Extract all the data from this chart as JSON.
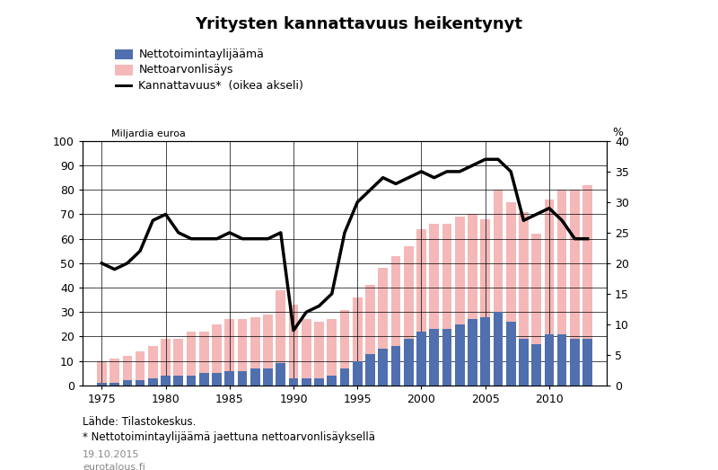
{
  "title": "Yritysten kannattavuus heikentynyt",
  "ylabel_left": "Miljardia euroa",
  "ylabel_right": "%",
  "footnote1": "Lähde: Tilastokeskus.",
  "footnote2": "* Nettotoimintaylijäämä jaettuna nettoarvonlisäyksellä",
  "footnote3": "19.10.2015\neurotalous.fi",
  "legend_blue": "Nettotoimintaylijäämä",
  "legend_pink": "Nettoarvonlisäys",
  "legend_line": "Kannattavuus*  (oikea akseli)",
  "years": [
    1975,
    1976,
    1977,
    1978,
    1979,
    1980,
    1981,
    1982,
    1983,
    1984,
    1985,
    1986,
    1987,
    1988,
    1989,
    1990,
    1991,
    1992,
    1993,
    1994,
    1995,
    1996,
    1997,
    1998,
    1999,
    2000,
    2001,
    2002,
    2003,
    2004,
    2005,
    2006,
    2007,
    2008,
    2009,
    2010,
    2011,
    2012,
    2013
  ],
  "nettoarvo": [
    10,
    11,
    12,
    14,
    16,
    19,
    19,
    22,
    22,
    25,
    27,
    27,
    28,
    29,
    39,
    33,
    27,
    26,
    27,
    31,
    36,
    41,
    48,
    53,
    57,
    64,
    66,
    66,
    69,
    70,
    68,
    80,
    75,
    71,
    62,
    76,
    80,
    80,
    82
  ],
  "nettotoiminta": [
    1,
    1,
    2,
    2,
    3,
    4,
    4,
    4,
    5,
    5,
    6,
    6,
    7,
    7,
    9,
    3,
    3,
    3,
    4,
    7,
    10,
    13,
    15,
    16,
    19,
    22,
    23,
    23,
    25,
    27,
    28,
    30,
    26,
    19,
    17,
    21,
    21,
    19,
    19
  ],
  "kannattavuus": [
    20,
    19,
    20,
    22,
    27,
    28,
    25,
    24,
    24,
    24,
    25,
    24,
    24,
    24,
    25,
    9,
    12,
    13,
    15,
    25,
    30,
    32,
    34,
    33,
    34,
    35,
    34,
    35,
    35,
    36,
    37,
    37,
    35,
    27,
    28,
    29,
    27,
    24,
    24
  ],
  "ylim_left": [
    0,
    100
  ],
  "ylim_right": [
    0,
    40
  ],
  "yticks_left": [
    0,
    10,
    20,
    30,
    40,
    50,
    60,
    70,
    80,
    90,
    100
  ],
  "yticks_right": [
    0,
    5,
    10,
    15,
    20,
    25,
    30,
    35,
    40
  ],
  "bar_color_pink": "#f4b8b8",
  "bar_color_blue": "#4f6faf",
  "line_color": "#000000",
  "background_color": "#ffffff"
}
